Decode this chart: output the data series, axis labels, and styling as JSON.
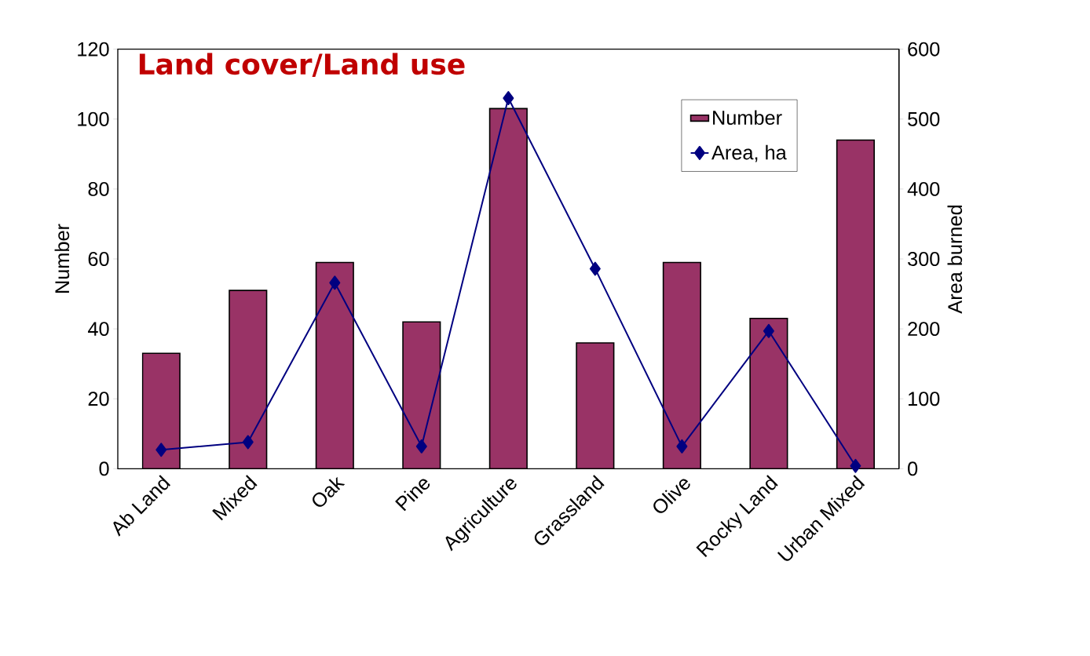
{
  "chart_data": {
    "type": "bar",
    "title": "Land cover/Land use",
    "ylabel": "Number",
    "y2label": "Area burned",
    "categories": [
      "Ab Land",
      "Mixed",
      "Oak",
      "Pine",
      "Agriculture",
      "Grassland",
      "Olive",
      "Rocky Land",
      "Urban Mixed"
    ],
    "series": [
      {
        "name": "Number",
        "color": "#993366",
        "values": [
          33,
          51,
          59,
          42,
          103,
          36,
          59,
          43,
          94
        ]
      },
      {
        "name": "Area, ha",
        "type": "line",
        "axis": "y2",
        "color": "#000080",
        "marker": "diamond",
        "values": [
          27,
          38,
          266,
          32,
          530,
          286,
          32,
          197,
          4
        ]
      }
    ],
    "ylim": [
      0,
      120
    ],
    "yticks": [
      0,
      20,
      40,
      60,
      80,
      100,
      120
    ],
    "y2lim": [
      0,
      600
    ],
    "y2ticks": [
      0,
      100,
      200,
      300,
      400,
      500,
      600
    ],
    "legend": "top right",
    "grid": false
  }
}
